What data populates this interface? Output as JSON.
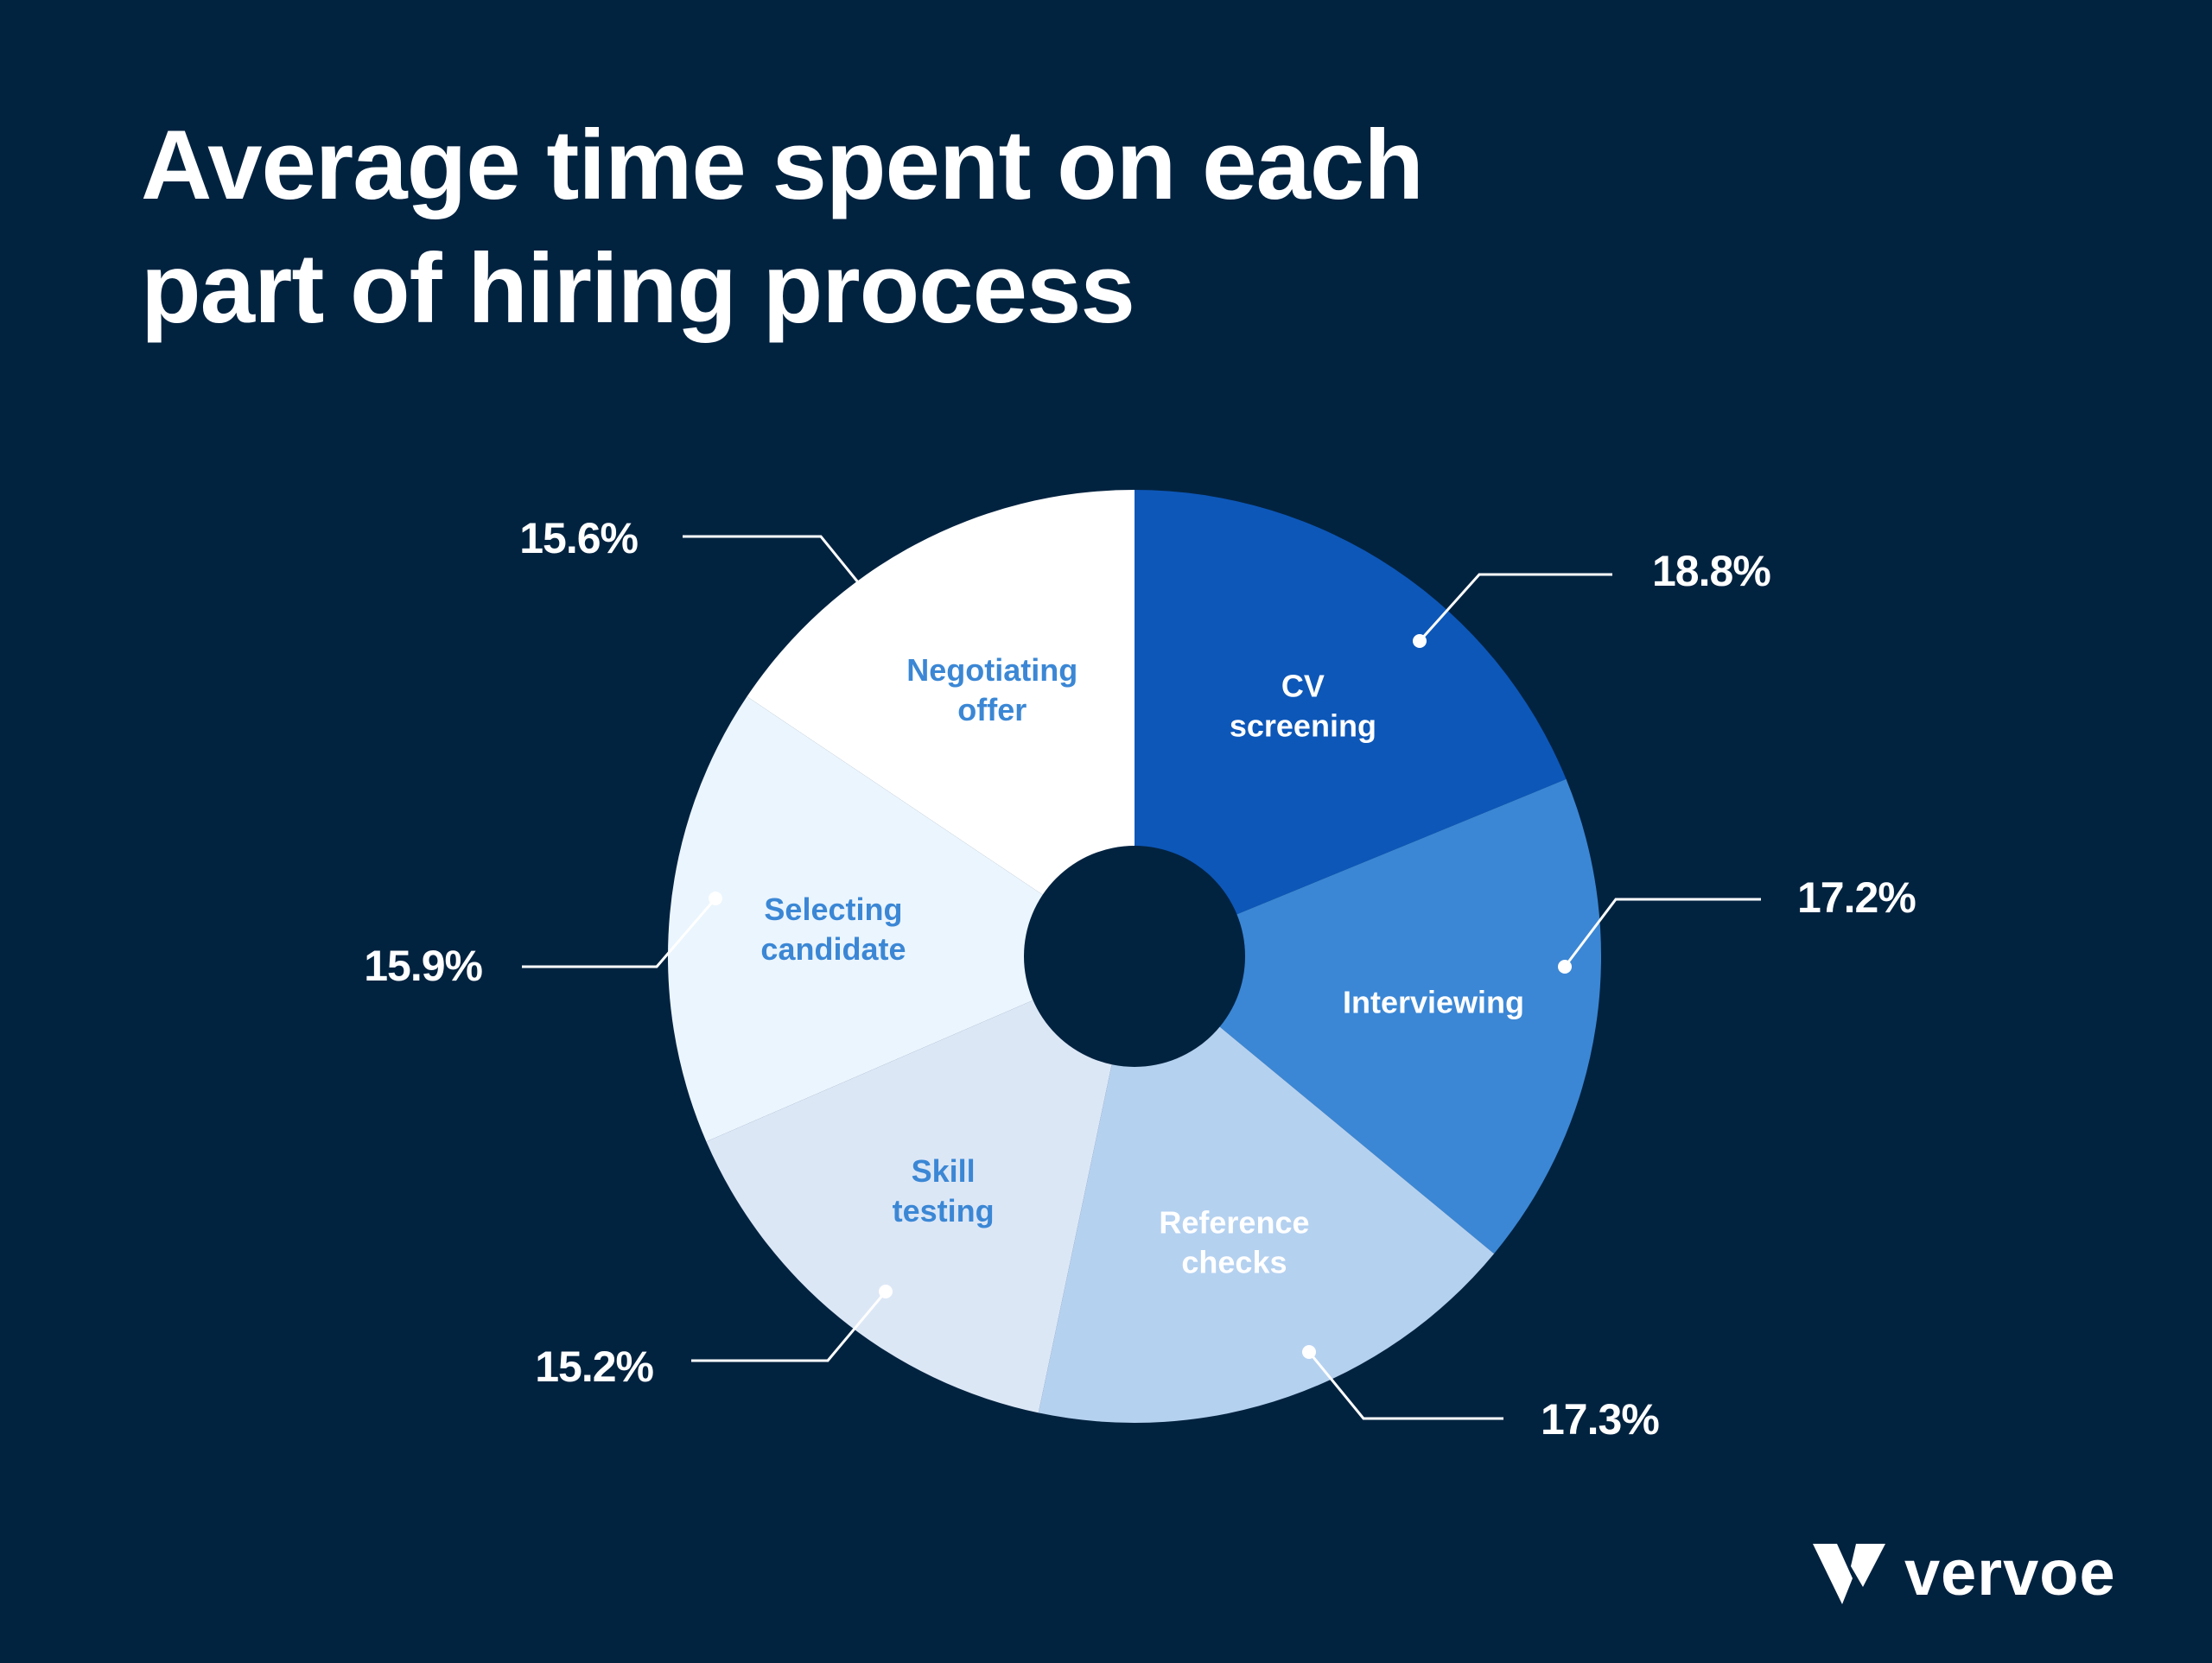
{
  "title_lines": [
    "Average time spent on each",
    "part of hiring process"
  ],
  "brand": {
    "name": "vervoe",
    "icon": "vervoe-v-logo-icon"
  },
  "colors": {
    "background": "#022340",
    "leader_line": "#ffffff",
    "hole": "#022340"
  },
  "chart_data": {
    "type": "pie",
    "title": "Average time spent on each part of hiring process",
    "donut": true,
    "slices": [
      {
        "label": "CV screening",
        "label_lines": [
          "CV",
          "screening"
        ],
        "value": 18.8,
        "pct_label": "18.8%",
        "color": "#0d57b8",
        "label_color": "#ffffff"
      },
      {
        "label": "Interviewing",
        "label_lines": [
          "Interviewing"
        ],
        "value": 17.2,
        "pct_label": "17.2%",
        "color": "#3b87d5",
        "label_color": "#ffffff"
      },
      {
        "label": "Reference checks",
        "label_lines": [
          "Reference",
          "checks"
        ],
        "value": 17.3,
        "pct_label": "17.3%",
        "color": "#b5d1f0",
        "label_color": "#ffffff"
      },
      {
        "label": "Skill testing",
        "label_lines": [
          "Skill",
          "testing"
        ],
        "value": 15.2,
        "pct_label": "15.2%",
        "color": "#dce7f6",
        "label_color": "#3b87d5"
      },
      {
        "label": "Selecting candidate",
        "label_lines": [
          "Selecting",
          "candidate"
        ],
        "value": 15.9,
        "pct_label": "15.9%",
        "color": "#ebf5fe",
        "label_color": "#3b87d5"
      },
      {
        "label": "Negotiating offer",
        "label_lines": [
          "Negotiating",
          "offer"
        ],
        "value": 15.6,
        "pct_label": "15.6%",
        "color": "#ffffff",
        "label_color": "#3b87d5"
      }
    ]
  }
}
